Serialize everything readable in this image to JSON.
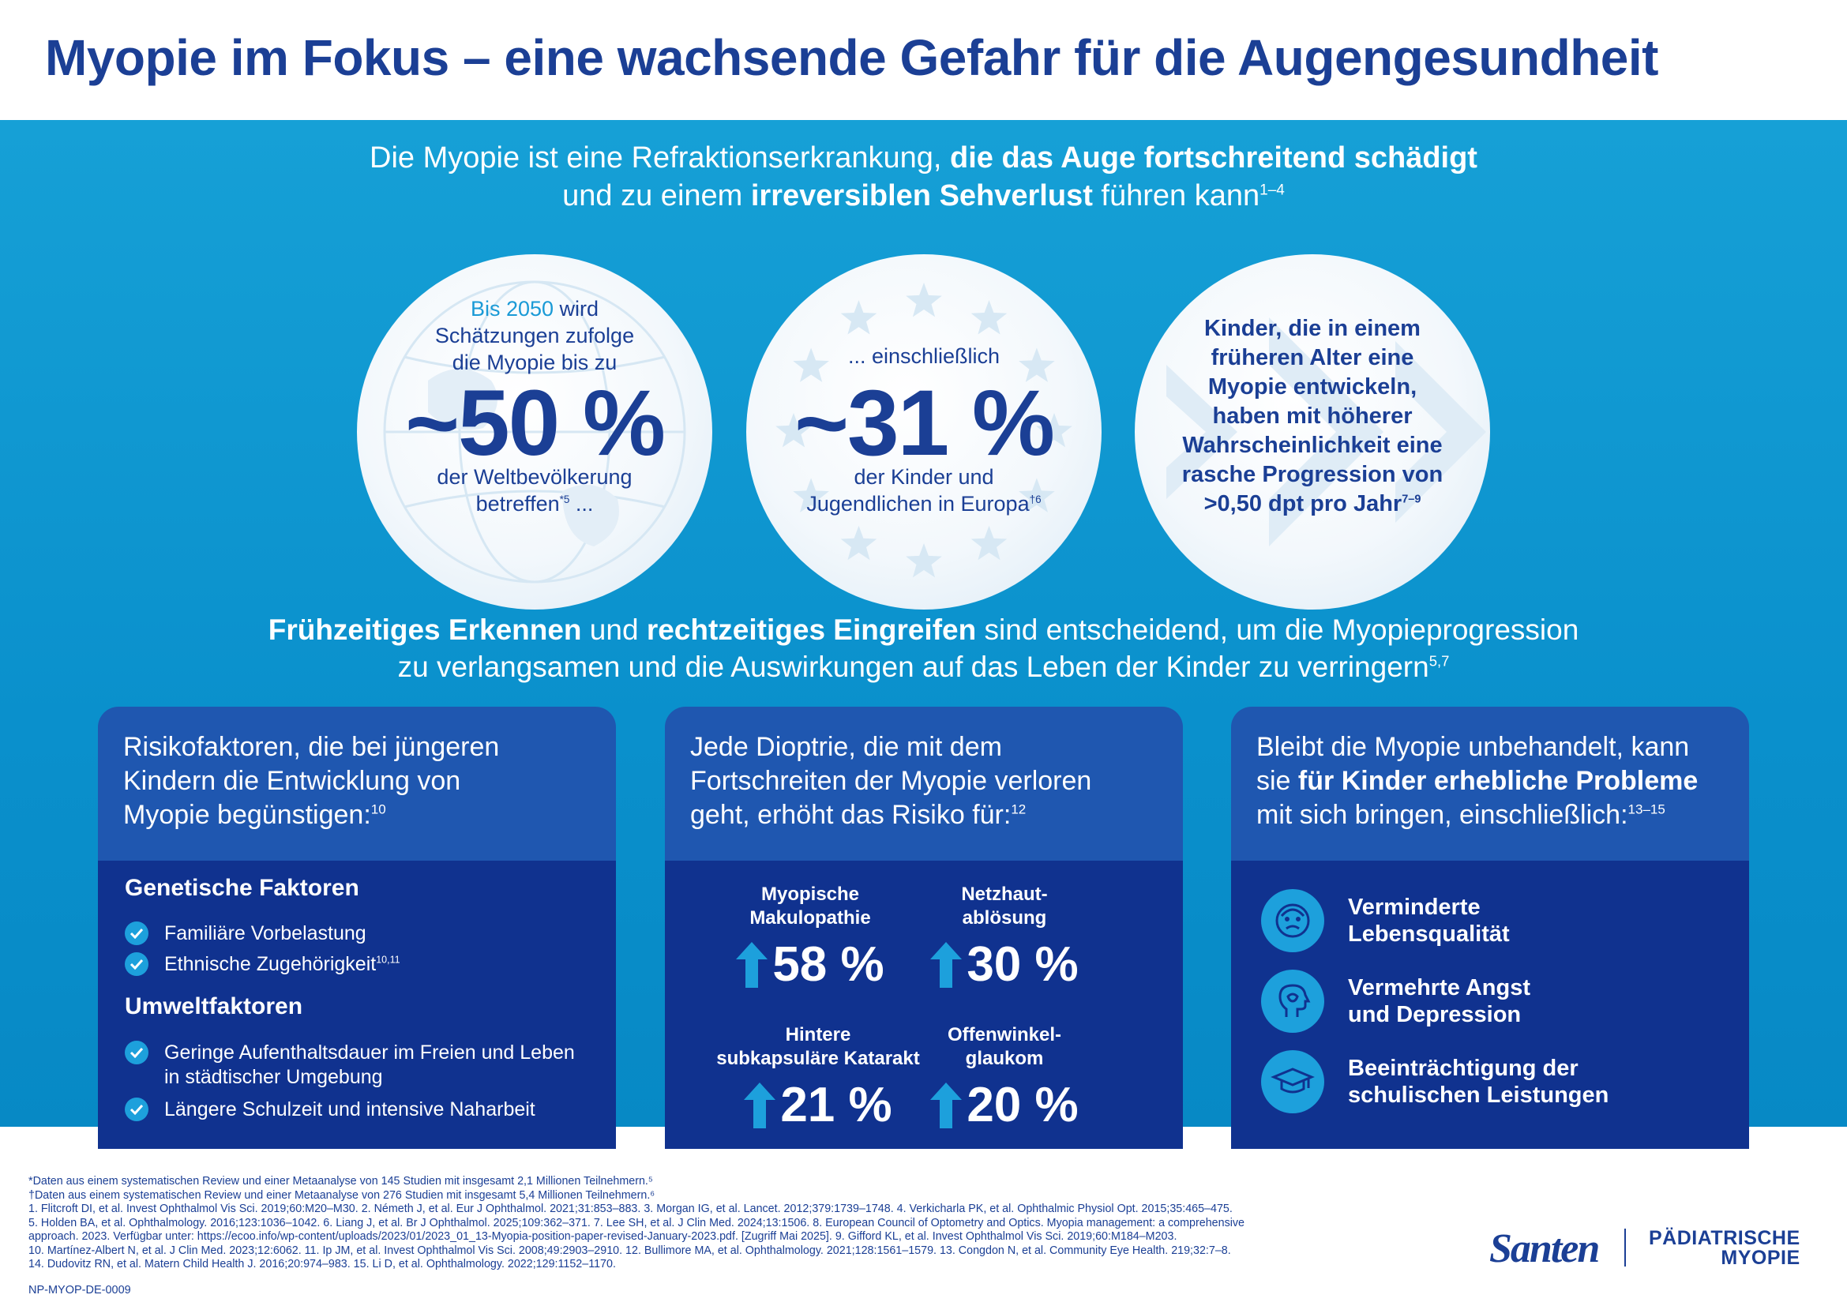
{
  "title": "Myopie im Fokus – eine wachsende Gefahr für die Augengesundheit",
  "intro": {
    "l1_a": "Die Myopie ist eine Refraktionserkrankung, ",
    "l1_b": "die das Auge fortschreitend schädigt",
    "l2_a": "und zu einem ",
    "l2_b": "irreversiblen Sehverlust",
    "l2_c": " führen kann",
    "l2_sup": "1–4"
  },
  "circle1": {
    "l1_accent": "Bis 2050",
    "l1_rest": " wird",
    "l2": "Schätzungen zufolge",
    "l3": "die Myopie bis zu",
    "big": "~50 %",
    "l4": "der Weltbevölkerung",
    "l5": "betreffen",
    "l5_sup": "*5",
    "l5_end": " ..."
  },
  "circle2": {
    "l1": "... einschließlich",
    "big": "~31 %",
    "l2": "der Kinder und",
    "l3": "Jugendlichen in Europa",
    "l3_sup": "†6"
  },
  "circle3": {
    "lines": [
      "Kinder, die in einem",
      "früheren Alter eine",
      "Myopie entwickeln,",
      "haben mit höherer",
      "Wahrscheinlichkeit eine",
      "rasche Progression von"
    ],
    "last": ">0,50 dpt pro Jahr",
    "last_sup": "7–9"
  },
  "mid": {
    "a": "Frühzeitiges Erkennen",
    "b": " und ",
    "c": "rechtzeitiges Eingreifen",
    "d": " sind entscheidend, um die Myopieprogression",
    "l2": "zu verlangsamen und die Auswirkungen auf das Leben der Kinder zu verringern",
    "l2_sup": "5,7"
  },
  "card1": {
    "head_l1": "Risikofaktoren, die bei jüngeren",
    "head_l2": "Kindern die Entwicklung von",
    "head_l3": "Myopie begünstigen:",
    "head_sup": "10",
    "sec1": "Genetische Faktoren",
    "g1": "Familiäre Vorbelastung",
    "g2": "Ethnische Zugehörigkeit",
    "g2_sup": "10,11",
    "sec2": "Umweltfaktoren",
    "u1_l1": "Geringe Aufenthaltsdauer im Freien und Leben",
    "u1_l2": "in städtischer Umgebung",
    "u2": "Längere Schulzeit und intensive Naharbeit"
  },
  "card2": {
    "head_l1": "Jede Dioptrie, die mit dem",
    "head_l2": "Fortschreiten der Myopie verloren",
    "head_l3": "geht, erhöht das Risiko für:",
    "head_sup": "12",
    "stats": [
      {
        "l1": "Myopische",
        "l2": "Makulopathie",
        "value": "58 %"
      },
      {
        "l1": "Netzhaut-",
        "l2": "ablösung",
        "value": "30 %"
      },
      {
        "l1": "Hintere",
        "l2": "subkapsuläre Katarakt",
        "value": "21 %"
      },
      {
        "l1": "Offenwinkel-",
        "l2": "glaukom",
        "value": "20 %"
      }
    ]
  },
  "card3": {
    "head_l1": "Bleibt die Myopie unbehandelt, kann",
    "head_l2a": "sie ",
    "head_l2b": "für Kinder erhebliche Probleme",
    "head_l3": "mit sich bringen, einschließlich:",
    "head_sup": "13–15",
    "items": [
      {
        "l1": "Verminderte",
        "l2": "Lebensqualität",
        "icon": "sad-face-icon"
      },
      {
        "l1": "Vermehrte Angst",
        "l2": "und Depression",
        "icon": "head-profile-icon"
      },
      {
        "l1": "Beeinträchtigung der",
        "l2": "schulischen Leistungen",
        "icon": "graduation-cap-icon"
      }
    ]
  },
  "footnotes": [
    "*Daten aus einem systematischen Review und einer Metaanalyse von 145 Studien mit insgesamt 2,1 Millionen Teilnehmern.⁵",
    "†Daten aus einem systematischen Review und einer Metaanalyse von 276 Studien mit insgesamt 5,4 Millionen Teilnehmern.⁶",
    "1. Flitcroft DI, et al. Invest Ophthalmol Vis Sci. 2019;60:M20–M30. 2. Németh J, et al. Eur J Ophthalmol. 2021;31:853–883. 3. Morgan IG, et al. Lancet. 2012;379:1739–1748. 4. Verkicharla PK, et al. Ophthalmic Physiol Opt. 2015;35:465–475.",
    "5. Holden BA, et al. Ophthalmology. 2016;123:1036–1042. 6. Liang J, et al. Br J Ophthalmol. 2025;109:362–371. 7. Lee SH, et al. J Clin Med. 2024;13:1506. 8. European Council of Optometry and Optics. Myopia management: a comprehensive",
    "approach. 2023. Verfügbar unter: https://ecoo.info/wp-content/uploads/2023/01/2023_01_13-Myopia-position-paper-revised-January-2023.pdf. [Zugriff Mai 2025]. 9. Gifford KL, et al. Invest Ophthalmol Vis Sci. 2019;60:M184–M203.",
    "10. Martínez-Albert N, et al. J Clin Med. 2023;12:6062. 11. Ip JM, et al. Invest Ophthalmol Vis Sci. 2008;49:2903–2910. 12. Bullimore MA, et al. Ophthalmology. 2021;128:1561–1579. 13. Congdon N, et al. Community Eye Health. 219;32:7–8.",
    "14. Dudovitz RN, et al. Matern Child Health J. 2016;20:974–983. 15. Li D, et al. Ophthalmology. 2022;129:1152–1170."
  ],
  "code": "NP-MYOP-DE-0009",
  "logo": {
    "santen": "Santen",
    "pm_l1": "PÄDIATRISCHE",
    "pm_l2": "MYOPIE"
  },
  "colors": {
    "brand_navy": "#1b3f95",
    "hero_blue": "#0a90cc",
    "card_head": "#1f57b0",
    "card_body": "#10328f",
    "accent": "#1da0dc"
  }
}
